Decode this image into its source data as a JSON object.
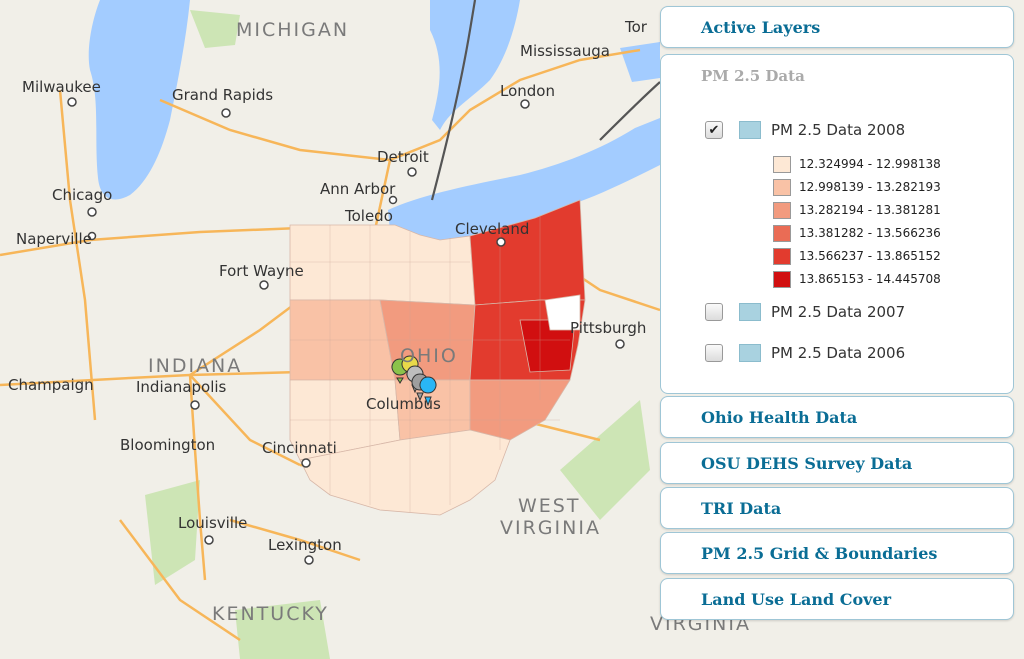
{
  "map": {
    "places": [
      "Milwaukee",
      "Grand Rapids",
      "Chicago",
      "Naperville",
      "Detroit",
      "Ann Arbor",
      "Toledo",
      "London",
      "Mississauga",
      "Tor",
      "Cleveland",
      "Fort Wayne",
      "Pittsburgh",
      "Champaign",
      "Indianapolis",
      "Bloomington",
      "Cincinnati",
      "Louisville",
      "Lexington",
      "Columbus"
    ],
    "regions": [
      "MICHIGAN",
      "INDIANA",
      "OHIO",
      "WEST",
      "VIRGINIA",
      "KENTUCKY",
      "VIRGINIA"
    ],
    "colors": {
      "water": "#a3ccff",
      "land": "#f1efe8",
      "park": "#cde5b5",
      "highway": "#f7b659",
      "border": "#555555"
    },
    "markers": [
      {
        "icon": "map-pin-icon",
        "color": "#8bc34a"
      },
      {
        "icon": "map-pin-icon",
        "color": "#e8d94a"
      },
      {
        "icon": "map-pin-icon",
        "color": "#bdbdbd"
      },
      {
        "icon": "map-pin-icon",
        "color": "#9e9e9e"
      },
      {
        "icon": "map-pin-icon",
        "color": "#29b6f6"
      }
    ]
  },
  "panel": {
    "active_layers": "Active Layers",
    "pm_data_title": "PM 2.5 Data",
    "layers": [
      {
        "label": "PM 2.5 Data 2008",
        "checked": true,
        "check": "✔"
      },
      {
        "label": "PM 2.5 Data 2007",
        "checked": false,
        "check": ""
      },
      {
        "label": "PM 2.5 Data 2006",
        "checked": false,
        "check": ""
      }
    ],
    "legend": [
      {
        "range": "12.324994 - 12.998138",
        "color": "#fde8d5"
      },
      {
        "range": "12.998139 - 13.282193",
        "color": "#f9c2a6"
      },
      {
        "range": "13.282194 - 13.381281",
        "color": "#f29b7f"
      },
      {
        "range": "13.381282 - 13.566236",
        "color": "#ea6c55"
      },
      {
        "range": "13.566237 - 13.865152",
        "color": "#e23b2e"
      },
      {
        "range": "13.865153 - 14.445708",
        "color": "#d10f10"
      }
    ],
    "sections": [
      "Ohio Health Data",
      "OSU DEHS Survey Data",
      "TRI Data",
      "PM 2.5 Grid & Boundaries",
      "Land Use Land Cover"
    ]
  }
}
